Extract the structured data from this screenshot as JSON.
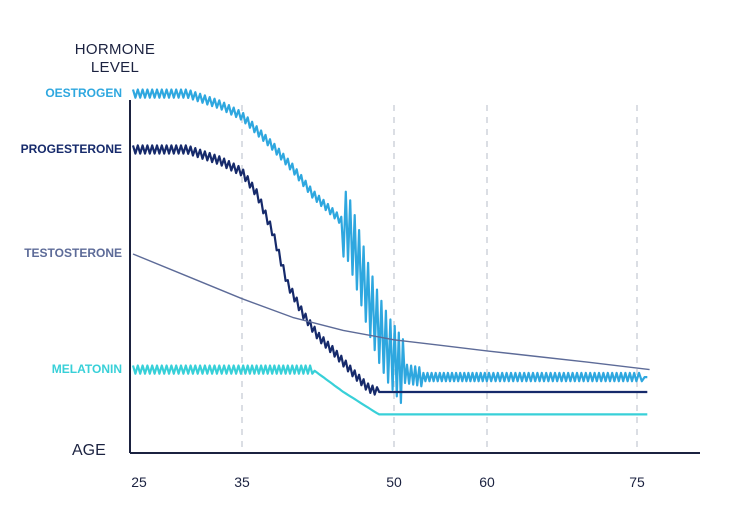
{
  "chart_data": {
    "type": "line",
    "ylabel": "HORMONE\nLEVEL",
    "xlabel": "AGE",
    "x_ticks": [
      25,
      35,
      50,
      60,
      75
    ],
    "xlim": [
      25,
      80
    ],
    "ylim": [
      0,
      100
    ],
    "grid": "vertical-dashed",
    "series": [
      {
        "name": "OESTROGEN",
        "color": "#2ea7df",
        "points": [
          [
            25,
            91
          ],
          [
            30,
            91
          ],
          [
            33,
            88
          ],
          [
            35,
            85
          ],
          [
            38,
            77
          ],
          [
            40,
            71
          ],
          [
            42,
            64
          ],
          [
            44,
            59
          ],
          [
            45.5,
            55
          ],
          [
            46.5,
            46
          ],
          [
            47.5,
            36
          ],
          [
            48.5,
            28
          ],
          [
            49.5,
            22
          ],
          [
            51,
            16
          ],
          [
            53,
            15
          ],
          [
            56,
            15
          ],
          [
            60,
            15
          ],
          [
            65,
            15
          ],
          [
            70,
            15
          ],
          [
            76,
            15
          ]
        ],
        "noisy": true
      },
      {
        "name": "PROGESTERONE",
        "color": "#162a6b",
        "points": [
          [
            25,
            76
          ],
          [
            30,
            76
          ],
          [
            33,
            73
          ],
          [
            35,
            70
          ],
          [
            36.5,
            64
          ],
          [
            38,
            54
          ],
          [
            39.5,
            40
          ],
          [
            41,
            32
          ],
          [
            42.5,
            26
          ],
          [
            44,
            22
          ],
          [
            46,
            16
          ],
          [
            47.5,
            12
          ],
          [
            48.5,
            11
          ],
          [
            76,
            11
          ]
        ],
        "noisy": true
      },
      {
        "name": "TESTOSTERONE",
        "color": "#5d6b98",
        "points": [
          [
            25,
            48
          ],
          [
            30,
            42
          ],
          [
            35,
            36
          ],
          [
            40,
            31
          ],
          [
            45,
            27.5
          ],
          [
            50,
            25
          ],
          [
            55,
            23.5
          ],
          [
            60,
            22
          ],
          [
            65,
            20.5
          ],
          [
            70,
            19
          ],
          [
            76,
            17
          ]
        ],
        "noisy": false
      },
      {
        "name": "MELATONIN",
        "color": "#38d0d8",
        "points": [
          [
            25,
            17
          ],
          [
            42,
            17
          ],
          [
            45,
            11
          ],
          [
            48.5,
            5
          ],
          [
            76,
            5
          ]
        ],
        "noisy": true
      }
    ]
  }
}
